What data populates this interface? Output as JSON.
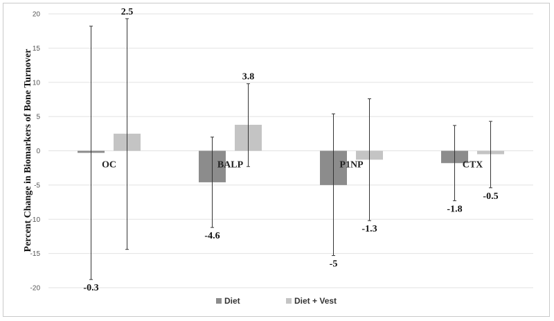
{
  "chart_data": {
    "type": "bar",
    "categories": [
      "OC",
      "BALP",
      "P1NP",
      "CTX"
    ],
    "series": [
      {
        "name": "Diet",
        "color": "#8c8c8c",
        "values": [
          -0.3,
          -4.6,
          -5,
          -1.8
        ],
        "labels": [
          "-0.3",
          "-4.6",
          "-5",
          "-1.8"
        ],
        "error_low": [
          -18.8,
          -11.2,
          -15.3,
          -7.3
        ],
        "error_high": [
          18.2,
          2.0,
          5.4,
          3.7
        ]
      },
      {
        "name": "Diet + Vest",
        "color": "#c4c4c4",
        "values": [
          2.5,
          3.8,
          -1.3,
          -0.5
        ],
        "labels": [
          "2.5",
          "3.8",
          "-1.3",
          "-0.5"
        ],
        "error_low": [
          -14.4,
          -2.3,
          -10.2,
          -5.4
        ],
        "error_high": [
          19.3,
          9.8,
          7.6,
          4.3
        ]
      }
    ],
    "title": "",
    "xlabel": "",
    "ylabel": "Percent Change in Biomarkers of Bone Turnover",
    "ylim": [
      -20,
      20
    ],
    "yticks": [
      -20,
      -15,
      -10,
      -5,
      0,
      5,
      10,
      15,
      20
    ],
    "grid": true,
    "legend": "bottom"
  }
}
